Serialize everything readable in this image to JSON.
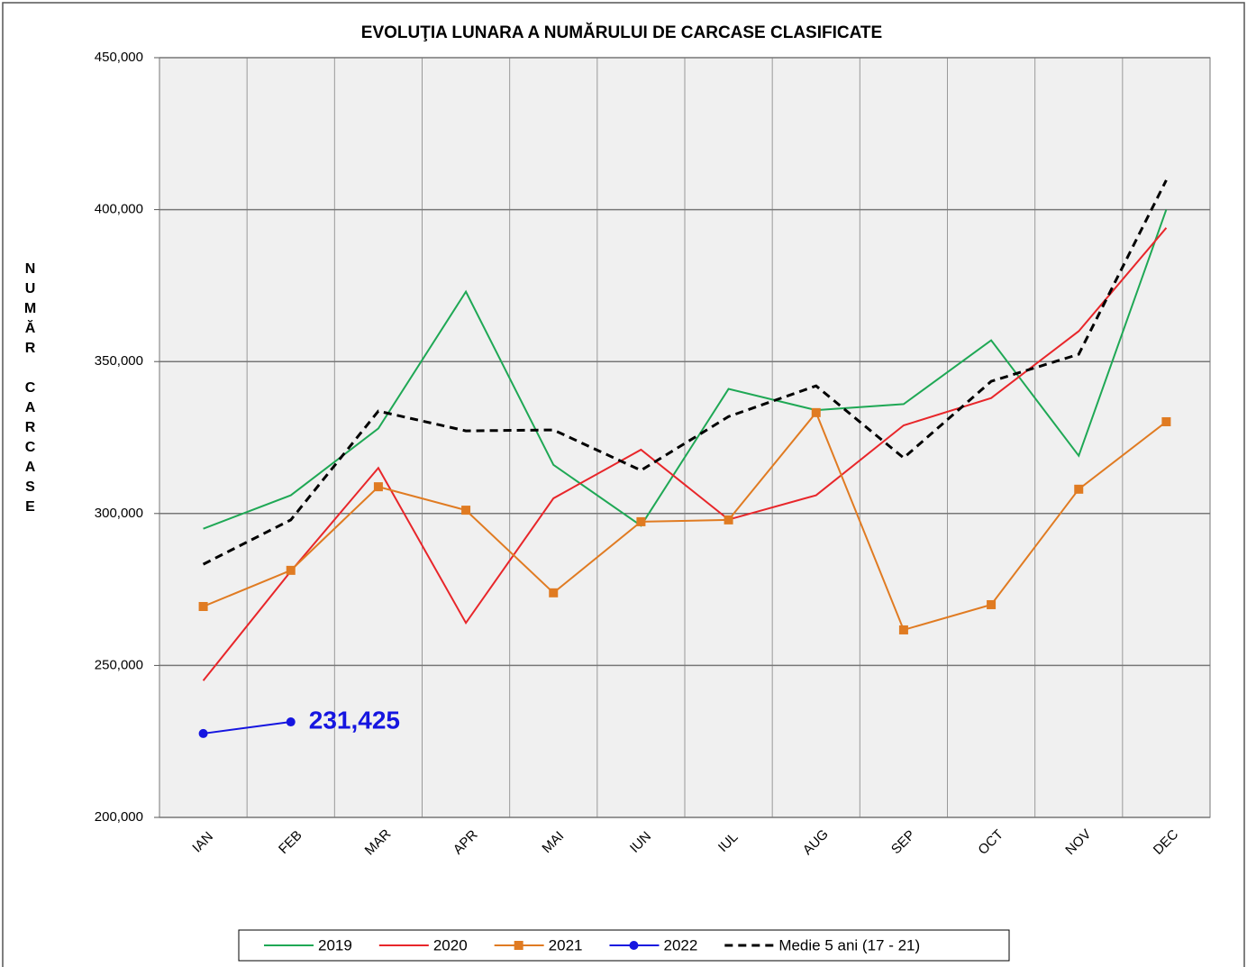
{
  "chart_data": {
    "type": "line",
    "title": "EVOLUŢIA LUNARA A NUMĂRULUI DE CARCASE CLASIFICATE",
    "y_label": "NUMĂR CARCASE",
    "categories": [
      "IAN",
      "FEB",
      "MAR",
      "APR",
      "MAI",
      "IUN",
      "IUL",
      "AUG",
      "SEP",
      "OCT",
      "NOV",
      "DEC"
    ],
    "ylim": [
      200000,
      450000
    ],
    "yticks": [
      {
        "value": 200000,
        "label": "200,000"
      },
      {
        "value": 250000,
        "label": "250,000"
      },
      {
        "value": 300000,
        "label": "300,000"
      },
      {
        "value": 350000,
        "label": "350,000"
      },
      {
        "value": 400000,
        "label": "400,000"
      },
      {
        "value": 450000,
        "label": "450,000"
      }
    ],
    "grid": true,
    "legend": "bottom",
    "series": [
      {
        "name": "2019",
        "color": "#1fa855",
        "values": [
          295000,
          306000,
          328000,
          373000,
          316000,
          296000,
          341000,
          334000,
          336000,
          357000,
          319000,
          400000
        ]
      },
      {
        "name": "2020",
        "color": "#e8262a",
        "values": [
          245000,
          281000,
          315000,
          264000,
          305000,
          321000,
          298000,
          306000,
          329000,
          338000,
          360000,
          394000
        ]
      },
      {
        "name": "2021",
        "color": "#e07b22",
        "marker": "square",
        "values": [
          269400,
          281300,
          308800,
          301100,
          273900,
          297300,
          297900,
          333200,
          261700,
          270000,
          308000,
          330200
        ]
      },
      {
        "name": "2022",
        "color": "#1515e0",
        "marker": "circle",
        "values": [
          227600,
          231425,
          null,
          null,
          null,
          null,
          null,
          null,
          null,
          null,
          null,
          null
        ],
        "value_labels": [
          null,
          "231,425",
          null,
          null,
          null,
          null,
          null,
          null,
          null,
          null,
          null,
          null
        ]
      },
      {
        "name": "Medie 5 ani (17 - 21)",
        "color": "#000000",
        "dashed": true,
        "values": [
          283300,
          297900,
          333700,
          327200,
          327500,
          314200,
          331900,
          342000,
          318300,
          343500,
          352400,
          409700
        ]
      }
    ]
  }
}
